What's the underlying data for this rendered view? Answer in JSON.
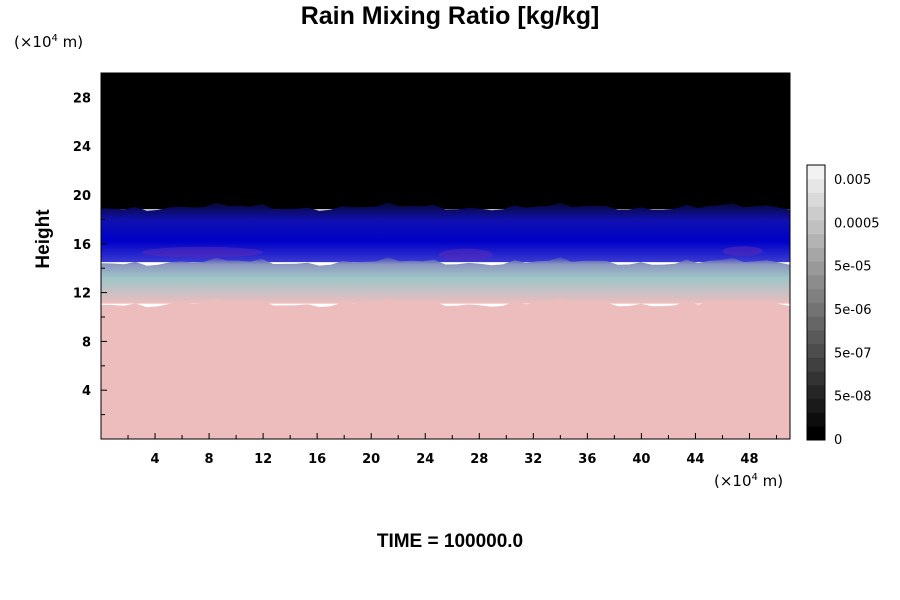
{
  "chart_data": {
    "type": "heatmap",
    "title": "Rain Mixing Ratio [kg/kg]",
    "ylabel": "Height",
    "y_unit_prefix": "(×10",
    "y_unit_exp": "4",
    "y_unit_suffix": " m)",
    "x_unit_prefix": "(×10",
    "x_unit_exp": "4",
    "x_unit_suffix": " m)",
    "xlim": [
      0,
      51
    ],
    "ylim": [
      0,
      30
    ],
    "x_ticks": [
      4,
      8,
      12,
      16,
      20,
      24,
      28,
      32,
      36,
      40,
      44,
      48
    ],
    "y_ticks": [
      4,
      8,
      12,
      16,
      20,
      24,
      28
    ],
    "colorbar_labels": [
      "0.005",
      "0.0005",
      "5e-05",
      "5e-06",
      "5e-07",
      "5e-08",
      "0"
    ],
    "time_label": "TIME = 100000.0",
    "regions": [
      {
        "name": "lower",
        "y_from": 0,
        "y_to": 11.1,
        "color": "#edbdbd"
      },
      {
        "name": "transition",
        "y_from": 11.1,
        "y_to": 14.5,
        "color": "#a6c6c8"
      },
      {
        "name": "middle",
        "y_from": 14.5,
        "y_to": 19.0,
        "color": "#1a1ad8"
      },
      {
        "name": "upper",
        "y_from": 19.0,
        "y_to": 30,
        "color": "#000000"
      }
    ],
    "colors": {
      "colorbar_steps": [
        "#000000",
        "#0d0d0d",
        "#1a1a1a",
        "#262626",
        "#333333",
        "#404040",
        "#4d4d4d",
        "#595959",
        "#666666",
        "#737373",
        "#808080",
        "#8c8c8c",
        "#999999",
        "#a6a6a6",
        "#b3b3b3",
        "#c0c0c0",
        "#cccccc",
        "#d9d9d9",
        "#e6e6e6",
        "#f2f2f2"
      ]
    }
  }
}
